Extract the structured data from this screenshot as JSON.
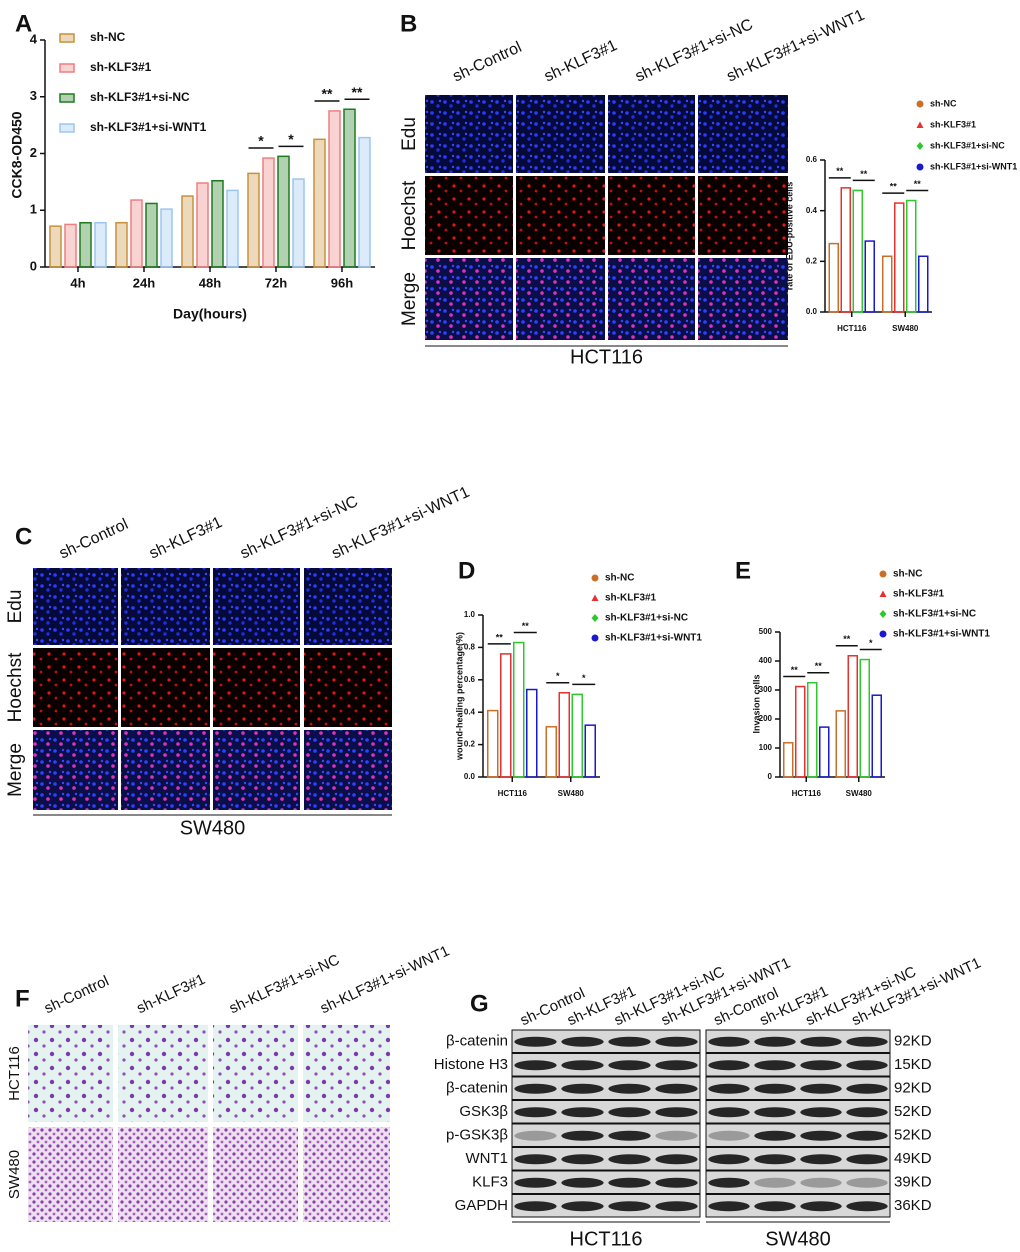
{
  "chart_data": [
    {
      "type": "bar",
      "xlabel": "Day(hours)",
      "ylabel": "CCK8-OD450",
      "categories": [
        "4h",
        "24h",
        "48h",
        "72h",
        "96h"
      ],
      "series": [
        {
          "name": "sh-NC",
          "color": "#c8913c",
          "values": [
            0.72,
            0.78,
            1.25,
            1.65,
            2.25
          ]
        },
        {
          "name": "sh-KLF3#1",
          "color": "#ef7f7f",
          "values": [
            0.75,
            1.18,
            1.48,
            1.92,
            2.75
          ]
        },
        {
          "name": "sh-KLF3#1+si-NC",
          "color": "#1f7a1f",
          "values": [
            0.78,
            1.12,
            1.52,
            1.95,
            2.78
          ]
        },
        {
          "name": "sh-KLF3#1+si-WNT1",
          "color": "#9cc6f0",
          "values": [
            0.78,
            1.02,
            1.35,
            1.55,
            2.28
          ]
        }
      ],
      "ylim": [
        0,
        4
      ],
      "yticks": [
        0,
        1,
        2,
        3,
        4
      ],
      "annotations": [
        "*",
        "*",
        "**",
        "**"
      ]
    },
    {
      "type": "bar",
      "ylabel": "rate of EDU-positive cells",
      "categories": [
        "HCT116",
        "SW480"
      ],
      "series": [
        {
          "name": "sh-NC",
          "color": "#c8702a",
          "marker": "circle",
          "values": [
            0.27,
            0.22
          ]
        },
        {
          "name": "sh-KLF3#1",
          "color": "#e83030",
          "marker": "triangle",
          "values": [
            0.49,
            0.43
          ]
        },
        {
          "name": "sh-KLF3#1+si-NC",
          "color": "#2ec82e",
          "marker": "diamond",
          "values": [
            0.48,
            0.44
          ]
        },
        {
          "name": "sh-KLF3#1+si-WNT1",
          "color": "#1a1acc",
          "marker": "circle",
          "values": [
            0.28,
            0.22
          ]
        }
      ],
      "ylim": [
        0,
        0.6
      ],
      "yticks": [
        {
          "value": 0,
          "label": "0.0"
        },
        0.2,
        0.4,
        0.6
      ],
      "annotations": [
        "**",
        "**",
        "**",
        "**"
      ]
    },
    {
      "type": "bar",
      "ylabel": "wound-healing percentage(%)",
      "categories": [
        "HCT116",
        "SW480"
      ],
      "series": [
        {
          "name": "sh-NC",
          "color": "#c8702a",
          "marker": "circle",
          "values": [
            0.41,
            0.31
          ]
        },
        {
          "name": "sh-KLF3#1",
          "color": "#e83030",
          "marker": "triangle",
          "values": [
            0.76,
            0.52
          ]
        },
        {
          "name": "sh-KLF3#1+si-NC",
          "color": "#2ec82e",
          "marker": "diamond",
          "values": [
            0.83,
            0.51
          ]
        },
        {
          "name": "sh-KLF3#1+si-WNT1",
          "color": "#1a1acc",
          "marker": "circle",
          "values": [
            0.54,
            0.32
          ]
        }
      ],
      "ylim": [
        0,
        1
      ],
      "yticks": [
        {
          "value": 0,
          "label": "0.0"
        },
        0.2,
        0.4,
        0.6,
        0.8,
        {
          "value": 1,
          "label": "1.0"
        }
      ],
      "annotations": [
        "**",
        "**",
        "*",
        "*"
      ]
    },
    {
      "type": "bar",
      "ylabel": "Invasion cells",
      "categories": [
        "HCT116",
        "SW480"
      ],
      "series": [
        {
          "name": "sh-NC",
          "color": "#c8702a",
          "marker": "circle",
          "values": [
            118,
            228
          ]
        },
        {
          "name": "sh-KLF3#1",
          "color": "#e83030",
          "marker": "triangle",
          "values": [
            312,
            418
          ]
        },
        {
          "name": "sh-KLF3#1+si-NC",
          "color": "#2ec82e",
          "marker": "diamond",
          "values": [
            325,
            405
          ]
        },
        {
          "name": "sh-KLF3#1+si-WNT1",
          "color": "#1a1acc",
          "marker": "circle",
          "values": [
            172,
            282
          ]
        }
      ],
      "ylim": [
        0,
        500
      ],
      "yticks": [
        0,
        100,
        200,
        300,
        400,
        500
      ],
      "annotations": [
        "**",
        "**",
        "**",
        "*"
      ]
    }
  ],
  "figure": {
    "panel_letters": [
      "A",
      "B",
      "C",
      "D",
      "E",
      "F",
      "G"
    ],
    "edu_hct116": {
      "columns": [
        "sh-Control",
        "sh-KLF3#1",
        "sh-KLF3#1+si-NC",
        "sh-KLF3#1+si-WNT1"
      ],
      "rows": [
        "Edu",
        "Hoechst",
        "Merge"
      ],
      "cell_line": "HCT116"
    },
    "edu_sw480": {
      "columns": [
        "sh-Control",
        "sh-KLF3#1",
        "sh-KLF3#1+si-NC",
        "sh-KLF3#1+si-WNT1"
      ],
      "rows": [
        "Edu",
        "Hoechst",
        "Merge"
      ],
      "cell_line": "SW480"
    },
    "transwell": {
      "columns": [
        "sh-Control",
        "sh-KLF3#1",
        "sh-KLF3#1+si-NC",
        "sh-KLF3#1+si-WNT1"
      ],
      "rows": [
        "HCT116",
        "SW480"
      ]
    },
    "western": {
      "columns": [
        "sh-Control",
        "sh-KLF3#1",
        "sh-KLF3#1+si-NC",
        "sh-KLF3#1+si-WNT1",
        "sh-Control",
        "sh-KLF3#1",
        "sh-KLF3#1+si-NC",
        "sh-KLF3#1+si-WNT1"
      ],
      "proteins": [
        "β-catenin",
        "Histone H3",
        "β-catenin",
        "GSK3β",
        "p-GSK3β",
        "WNT1",
        "KLF3",
        "GAPDH"
      ],
      "sizes": [
        "92KD",
        "15KD",
        "92KD",
        "52KD",
        "52KD",
        "49KD",
        "39KD",
        "36KD"
      ],
      "groups": [
        "HCT116",
        "SW480"
      ]
    }
  }
}
